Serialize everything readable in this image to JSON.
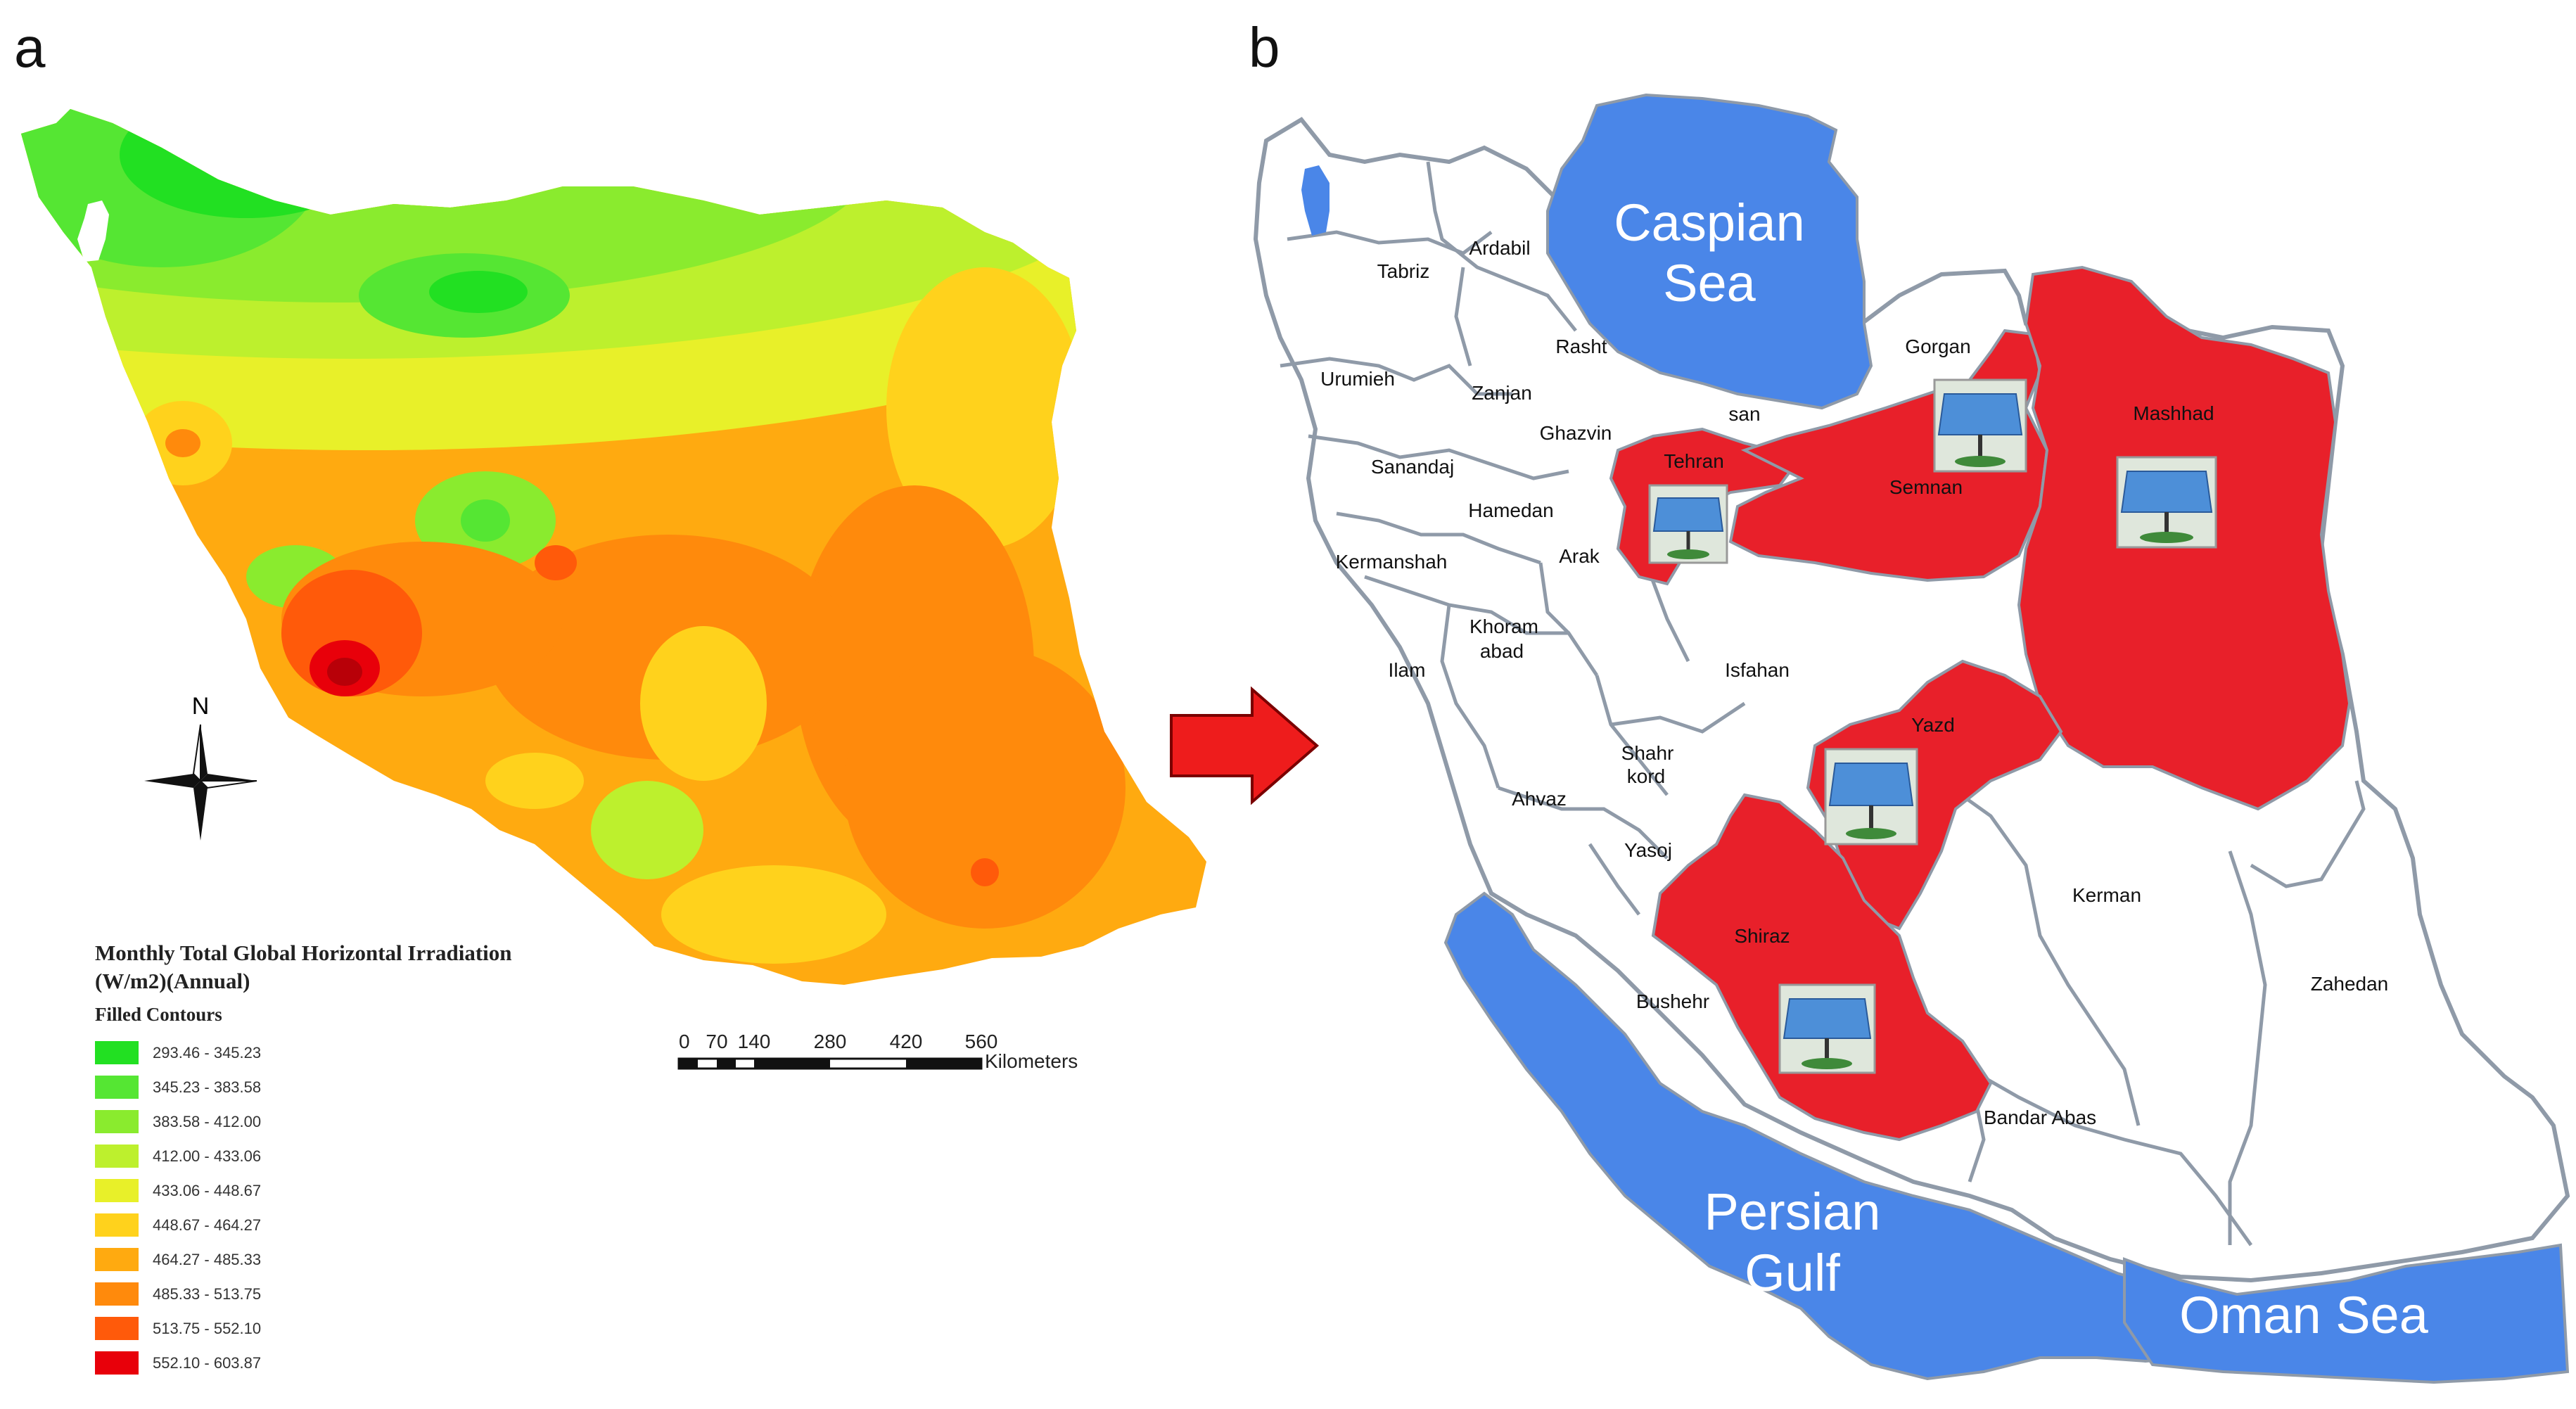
{
  "panels": {
    "a": "a",
    "b": "b"
  },
  "legend": {
    "title_line1": "Monthly Total Global Horizontal Irradiation",
    "title_line2": "(W/m2)(Annual)",
    "subtitle": "Filled Contours",
    "classes": [
      {
        "range": "293.46 - 345.23",
        "color": "#22e022"
      },
      {
        "range": "345.23 - 383.58",
        "color": "#55e633"
      },
      {
        "range": "383.58 - 412.00",
        "color": "#8aeb2e"
      },
      {
        "range": "412.00 - 433.06",
        "color": "#bdf02d"
      },
      {
        "range": "433.06 - 448.67",
        "color": "#e8f029"
      },
      {
        "range": "448.67 - 464.27",
        "color": "#ffd21c"
      },
      {
        "range": "464.27 - 485.33",
        "color": "#ffaa10"
      },
      {
        "range": "485.33 - 513.75",
        "color": "#ff8a0c"
      },
      {
        "range": "513.75 - 552.10",
        "color": "#ff5a0a"
      },
      {
        "range": "552.10 - 603.87",
        "color": "#e8000a"
      }
    ]
  },
  "scale": {
    "ticks": [
      "0",
      "70",
      "140",
      "280",
      "420",
      "560"
    ],
    "unit": "Kilometers"
  },
  "north_label": "N",
  "seas": {
    "caspian_1": "Caspian",
    "caspian_2": "Sea",
    "persian_1": "Persian",
    "persian_2": "Gulf",
    "oman": "Oman Sea"
  },
  "cities": {
    "tabriz": "Tabriz",
    "ardabil": "Ardabil",
    "rasht": "Rasht",
    "gorgan": "Gorgan",
    "urumieh": "Urumieh",
    "zanjan": "Zanjan",
    "ghazvin": "Ghazvin",
    "semnan_frag": "san",
    "sanandaj": "Sanandaj",
    "tehran": "Tehran",
    "semnan": "Semnan",
    "mashhad": "Mashhad",
    "hamedan": "Hamedan",
    "kermanshah": "Kermanshah",
    "arak": "Arak",
    "khoram_1": "Khoram",
    "khoram_2": "abad",
    "ilam": "Ilam",
    "isfahan": "Isfahan",
    "yazd": "Yazd",
    "shahr_1": "Shahr",
    "shahr_2": "kord",
    "ahvaz": "Ahvaz",
    "yasoj": "Yasoj",
    "kerman": "Kerman",
    "shiraz": "Shiraz",
    "zahedan": "Zahedan",
    "bushehr": "Bushehr",
    "bandar": "Bandar Abas"
  },
  "colors": {
    "selected_province": "#e8202a",
    "sea": "#4a86e8",
    "arrow": "#ee1c1c",
    "border": "#8f9aa8"
  }
}
